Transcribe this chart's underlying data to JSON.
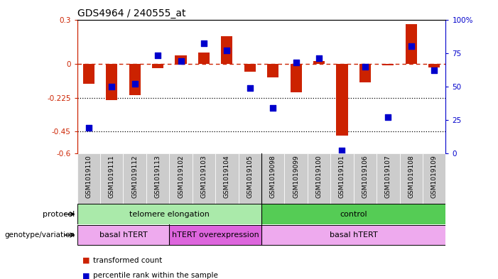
{
  "title": "GDS4964 / 240555_at",
  "samples": [
    "GSM1019110",
    "GSM1019111",
    "GSM1019112",
    "GSM1019113",
    "GSM1019102",
    "GSM1019103",
    "GSM1019104",
    "GSM1019105",
    "GSM1019098",
    "GSM1019099",
    "GSM1019100",
    "GSM1019101",
    "GSM1019106",
    "GSM1019107",
    "GSM1019108",
    "GSM1019109"
  ],
  "red_values": [
    -0.13,
    -0.24,
    -0.21,
    -0.025,
    0.06,
    0.08,
    0.19,
    -0.05,
    -0.09,
    -0.19,
    0.02,
    -0.48,
    -0.12,
    -0.01,
    0.27,
    -0.02
  ],
  "blue_values": [
    19,
    50,
    52,
    73,
    69,
    82,
    77,
    49,
    34,
    68,
    71,
    2,
    65,
    27,
    80,
    62
  ],
  "ylim_left": [
    -0.6,
    0.3
  ],
  "ylim_right": [
    0,
    100
  ],
  "yticks_left": [
    -0.6,
    -0.45,
    -0.225,
    0.0,
    0.3
  ],
  "ytick_labels_left": [
    "-0.6",
    "-0.45",
    "-0.225",
    "0",
    "0.3"
  ],
  "yticks_right": [
    0,
    25,
    50,
    75,
    100
  ],
  "ytick_labels_right": [
    "0",
    "25",
    "50",
    "75",
    "100%"
  ],
  "hline_y": 0.0,
  "dotted_lines": [
    -0.225,
    -0.45
  ],
  "bar_color": "#cc2200",
  "dot_color": "#0000cc",
  "hline_color": "#cc2200",
  "protocol_groups": [
    {
      "label": "telomere elongation",
      "start": 0,
      "end": 8,
      "color": "#aaeaaa"
    },
    {
      "label": "control",
      "start": 8,
      "end": 16,
      "color": "#55cc55"
    }
  ],
  "genotype_groups": [
    {
      "label": "basal hTERT",
      "start": 0,
      "end": 4,
      "color": "#eeaaee"
    },
    {
      "label": "hTERT overexpression",
      "start": 4,
      "end": 8,
      "color": "#dd66dd"
    },
    {
      "label": "basal hTERT",
      "start": 8,
      "end": 16,
      "color": "#eeaaee"
    }
  ],
  "legend_items": [
    {
      "label": "transformed count",
      "color": "#cc2200"
    },
    {
      "label": "percentile rank within the sample",
      "color": "#0000cc"
    }
  ],
  "background_color": "#ffffff",
  "sample_bg": "#cccccc",
  "bar_width": 0.5,
  "dot_size": 35
}
